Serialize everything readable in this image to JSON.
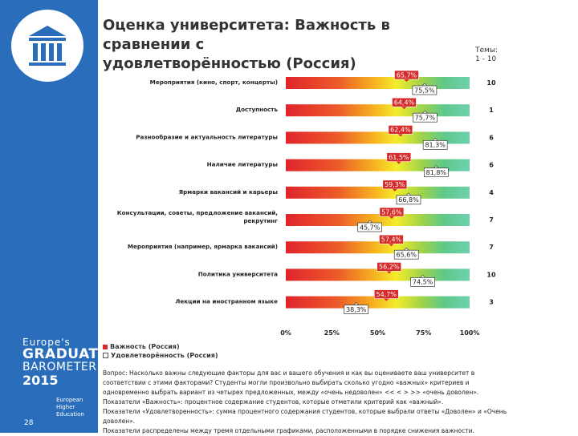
{
  "page": {
    "title_line1": "Оценка университета: Важность в сравнении с",
    "title_line2": "удовлетворённостью (Россия)",
    "page_number": "28"
  },
  "branding": {
    "line1": "Europe's",
    "graduate_line1": "GRADUATE",
    "graduate_line2": "BAROMETER",
    "year": "2015",
    "partner_line1": "European",
    "partner_line2": "Higher",
    "partner_line3": "Education",
    "accent": "#2a6ebb"
  },
  "scale": {
    "label": "Темы:",
    "range": "1 - 10"
  },
  "legend": {
    "importance": "Важность (Россия)",
    "satisfaction": "Удовлетворённость (Россия)",
    "importance_color": "#d62b2b",
    "satisfaction_color": "#ffffff"
  },
  "footnote": {
    "line1": "Вопрос: Насколько важны следующие факторы для вас и вашего обучения и как вы оцениваете ваш университет в",
    "line2": "соответствии с этими факторами? Студенты могли произвольно выбирать сколько угодно «важных» критериев и",
    "line3": "одновременно выбрать вариант из четырех предложенных, между «очень недоволен» << < > >> «очень доволен».",
    "line4": "Показатели «Важность»: процентное содержание студентов, которые отметили критерий как «важный».",
    "line5": "Показатели «Удовлетворенность»: сумма процентного содержания студентов, которые выбрали ответы «Доволен» и «Очень",
    "line6": "доволен».",
    "line7": "Показатели распределены между тремя отдельными графиками, расположенными в порядке снижения важности."
  },
  "chart_data": {
    "type": "bar",
    "title": "Оценка университета: Важность в сравнении с удовлетворённостью (Россия)",
    "xlabel": "",
    "ylabel": "",
    "xlim": [
      0,
      100
    ],
    "x_ticks": [
      "0%",
      "25%",
      "50%",
      "75%",
      "100%"
    ],
    "categories": [
      "Мероприятия (кино, спорт, концерты)",
      "Доступность",
      "Разнообразие и актуальность литературы",
      "Наличие литературы",
      "Ярмарки вакансий и карьеры",
      "Консультации, советы, предложение вакансий, рекрутинг",
      "Мероприятия (например, ярмарка вакансий)",
      "Политика университета",
      "Лекции на иностранном языке"
    ],
    "label_lines": [
      [
        "Мероприятия (кино, спорт, концерты)"
      ],
      [
        "Доступность"
      ],
      [
        "Разнообразие и актуальность литературы"
      ],
      [
        "Наличие литературы"
      ],
      [
        "Ярмарки вакансий и карьеры"
      ],
      [
        "Консультации, советы, предложение вакансий,",
        "рекрутинг"
      ],
      [
        "Мероприятия (например, ярмарка вакансий)"
      ],
      [
        "Политика университета"
      ],
      [
        "Лекции на иностранном языке"
      ]
    ],
    "topics": [
      "10",
      "1",
      "6",
      "6",
      "4",
      "7",
      "7",
      "10",
      "3"
    ],
    "series": [
      {
        "name": "Важность (Россия)",
        "values": [
          65.7,
          64.4,
          62.4,
          61.5,
          59.3,
          57.6,
          57.4,
          56.2,
          54.7
        ],
        "labels": [
          "65,7%",
          "64,4%",
          "62,4%",
          "61,5%",
          "59,3%",
          "57,6%",
          "57,4%",
          "56,2%",
          "54,7%"
        ]
      },
      {
        "name": "Удовлетворённость (Россия)",
        "values": [
          75.5,
          75.7,
          81.3,
          81.8,
          66.8,
          45.7,
          65.6,
          74.5,
          38.3
        ],
        "labels": [
          "75,5%",
          "75,7%",
          "81,3%",
          "81,8%",
          "66,8%",
          "45,7%",
          "65,6%",
          "74,5%",
          "38,3%"
        ]
      }
    ]
  }
}
